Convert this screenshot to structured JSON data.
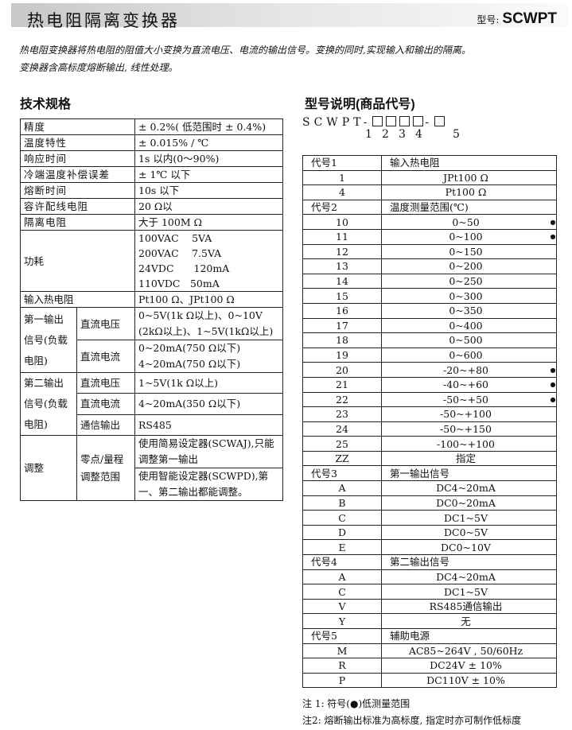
{
  "header": {
    "title": "热电阻隔离变换器",
    "model_label": "型号:",
    "model": "SCWPT"
  },
  "intro": [
    "热电阻变换器将热电阻的阻值大小变换为直流电压、电流的输出信号。变换的同时,实现输入和输出的隔离。",
    "变换器含高标度熔断输出, 线性处理。"
  ],
  "spec": {
    "heading": "技术规格",
    "simple": [
      [
        "精度",
        "± 0.2%( 低范围时 ± 0.4%)"
      ],
      [
        "温度特性",
        "± 0.015% / ℃"
      ],
      [
        "响应时间",
        "1s 以内(0～90%)"
      ],
      [
        "冷端温度补偿误差",
        "± 1℃ 以下"
      ],
      [
        "熔断时间",
        "10s 以下"
      ],
      [
        "容许配线电阻",
        "20 Ω以"
      ],
      [
        "隔离电阻",
        "大于 100M Ω"
      ]
    ],
    "power": {
      "label": "功耗",
      "lines": [
        "100VAC　 5VA",
        "200VAC　 7.5VA",
        "24VDC　　120mA",
        "110VDC　50mA"
      ]
    },
    "input": [
      "输入热电阻",
      "Pt100 Ω、JPt100 Ω"
    ],
    "out1": {
      "label": "第一输出信号(负载电阻)",
      "v_label": "直流电压",
      "v": "0~5V(1k Ω以上)、0~10V (2kΩ以上)、1~5V(1kΩ以上)",
      "i_label": "直流电流",
      "i": "0~20mA(750 Ω以下) 4~20mA(750 Ω以下)"
    },
    "out2": {
      "label": "第二输出信号(负载电阻)",
      "rows": [
        [
          "直流电压",
          "1~5V(1k Ω以上)"
        ],
        [
          "直流电流",
          "4~20mA(350 Ω以下)"
        ],
        [
          "通信输出",
          "RS485"
        ]
      ]
    },
    "adjust": {
      "label": "调整",
      "sub": "零点/量程调整范围",
      "a": "使用简易设定器(SCWAJ),只能调整第一输出",
      "b": "使用智能设定器(SCWPD),第一、第二输出都能调整。"
    }
  },
  "model": {
    "heading": "型号说明(商品代号)",
    "prefix": "SCWPT-",
    "digits": [
      "1",
      "2",
      "3",
      "4",
      "5"
    ],
    "rows": [
      {
        "h": true,
        "c": "代号1",
        "v": "输入热电阻"
      },
      {
        "c": "1",
        "v": "JPt100 Ω"
      },
      {
        "c": "4",
        "v": "Pt100 Ω"
      },
      {
        "h": true,
        "c": "代号2",
        "v": "温度测量范围(℃)"
      },
      {
        "c": "10",
        "v": "0~50",
        "d": "●"
      },
      {
        "c": "11",
        "v": "0~100",
        "d": "●"
      },
      {
        "c": "12",
        "v": "0~150"
      },
      {
        "c": "13",
        "v": "0~200"
      },
      {
        "c": "14",
        "v": "0~250"
      },
      {
        "c": "15",
        "v": "0~300"
      },
      {
        "c": "16",
        "v": "0~350"
      },
      {
        "c": "17",
        "v": "0~400"
      },
      {
        "c": "18",
        "v": "0~500"
      },
      {
        "c": "19",
        "v": "0~600"
      },
      {
        "c": "20",
        "v": "-20~+80",
        "d": "●"
      },
      {
        "c": "21",
        "v": "-40~+60",
        "d": "●"
      },
      {
        "c": "22",
        "v": "-50~+50",
        "d": "●"
      },
      {
        "c": "23",
        "v": "-50~+100"
      },
      {
        "c": "24",
        "v": "-50~+150"
      },
      {
        "c": "25",
        "v": "-100~+100"
      },
      {
        "c": "ZZ",
        "v": "指定"
      },
      {
        "h": true,
        "c": "代号3",
        "v": "第一输出信号"
      },
      {
        "c": "A",
        "v": "DC4~20mA"
      },
      {
        "c": "B",
        "v": "DC0~20mA"
      },
      {
        "c": "C",
        "v": "DC1~5V"
      },
      {
        "c": "D",
        "v": "DC0~5V"
      },
      {
        "c": "E",
        "v": "DC0~10V"
      },
      {
        "h": true,
        "c": "代号4",
        "v": "第二输出信号"
      },
      {
        "c": "A",
        "v": "DC4~20mA"
      },
      {
        "c": "C",
        "v": "DC1~5V"
      },
      {
        "c": "V",
        "v": "RS485通信输出"
      },
      {
        "c": "Y",
        "v": "无"
      },
      {
        "h": true,
        "c": "代号5",
        "v": "辅助电源"
      },
      {
        "c": "M",
        "v": "AC85~264V , 50/60Hz"
      },
      {
        "c": "R",
        "v": "DC24V ± 10%"
      },
      {
        "c": "P",
        "v": "DC110V ± 10%"
      }
    ],
    "notes": [
      "注 1: 符号(●)低测量范围",
      "注2: 熔断输出标准为高标度, 指定时亦可制作低标度"
    ]
  }
}
